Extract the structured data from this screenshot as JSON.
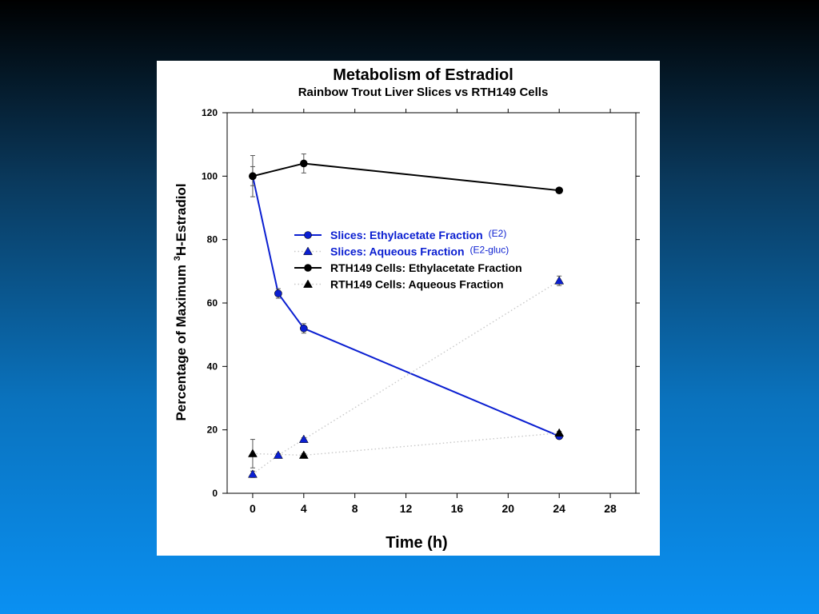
{
  "chart_data": {
    "type": "line",
    "title": "Metabolism of Estradiol",
    "subtitle": "Rainbow Trout Liver Slices vs RTH149 Cells",
    "xlabel": "Time (h)",
    "ylabel_prefix": "Percentage of Maximum ",
    "ylabel_superscript": "3",
    "ylabel_suffix": "H-Estradiol",
    "xlim": [
      -2,
      30
    ],
    "ylim": [
      0,
      120
    ],
    "xticks": [
      0,
      4,
      8,
      12,
      16,
      20,
      24,
      28
    ],
    "yticks": [
      0,
      20,
      40,
      60,
      80,
      100,
      120
    ],
    "grid": false,
    "legend_position": "center",
    "series": [
      {
        "name": "Slices: Ethylacetate Fraction",
        "note": "(E2)",
        "color": "#0b1fd1",
        "line_style": "solid",
        "marker": "circle",
        "x": [
          0,
          2,
          4,
          24
        ],
        "y": [
          100,
          63,
          52,
          18
        ],
        "err": [
          6.5,
          1.5,
          1.5,
          0.5
        ]
      },
      {
        "name": "Slices: Aqueous Fraction",
        "note": "(E2-gluc)",
        "color": "#0b1fd1",
        "line_style": "dotted",
        "marker": "triangle",
        "x": [
          0,
          2,
          4,
          24
        ],
        "y": [
          6,
          12,
          17,
          67
        ],
        "err": [
          1,
          0.5,
          0.5,
          1.5
        ]
      },
      {
        "name": "RTH149 Cells: Ethylacetate Fraction",
        "note": "",
        "color": "#000000",
        "line_style": "solid",
        "marker": "circle",
        "x": [
          0,
          4,
          24
        ],
        "y": [
          100,
          104,
          95.5
        ],
        "err": [
          3,
          3,
          0.5
        ]
      },
      {
        "name": "RTH149 Cells: Aqueous Fraction",
        "note": "",
        "color": "#000000",
        "line_style": "dotted",
        "marker": "triangle",
        "x": [
          0,
          4,
          24
        ],
        "y": [
          12.5,
          12,
          19
        ],
        "err": [
          4.5,
          0.5,
          0.5
        ]
      }
    ]
  }
}
